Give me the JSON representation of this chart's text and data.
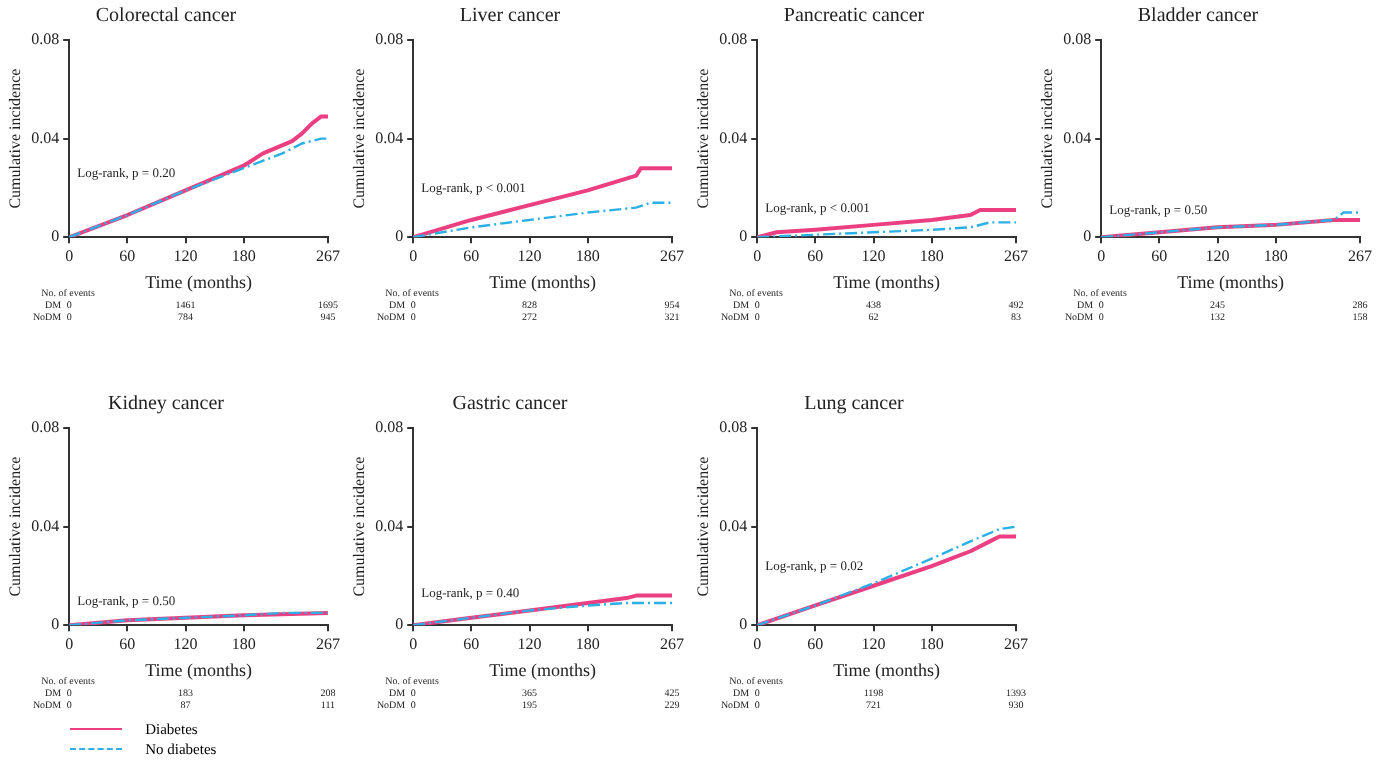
{
  "chart_data": [
    {
      "type": "line",
      "title": "Colorectal cancer",
      "xlabel": "Time (months)",
      "ylabel": "Cumulative incidence",
      "xlim": [
        0,
        267
      ],
      "xticks": [
        0,
        60,
        120,
        180,
        267
      ],
      "ylim": [
        0,
        0.08
      ],
      "yticks": [
        0,
        0.04,
        0.08
      ],
      "grid": false,
      "legend": false,
      "annotations": [
        "Log-rank, p = 0.20",
        "No. of events",
        "DM",
        "0",
        "1461",
        "1695",
        "NoDM",
        "0",
        "784",
        "945"
      ],
      "series": [
        {
          "color": "#ec3f82",
          "line_style": "solid",
          "x": [
            0,
            60,
            120,
            180,
            200,
            230,
            240,
            250,
            260,
            267
          ],
          "values": [
            0,
            0.009,
            0.019,
            0.029,
            0.034,
            0.039,
            0.042,
            0.046,
            0.049,
            0.049
          ]
        },
        {
          "color": "#2bb0e6",
          "line_style": "dashed",
          "x": [
            0,
            60,
            120,
            180,
            220,
            240,
            260,
            267
          ],
          "values": [
            0,
            0.009,
            0.019,
            0.028,
            0.034,
            0.038,
            0.04,
            0.04
          ]
        }
      ]
    },
    {
      "type": "line",
      "title": "Liver cancer",
      "xlabel": "Time (months)",
      "ylabel": "Cumulative incidence",
      "xlim": [
        0,
        267
      ],
      "xticks": [
        0,
        60,
        120,
        180,
        267
      ],
      "ylim": [
        0,
        0.08
      ],
      "yticks": [
        0,
        0.04,
        0.08
      ],
      "grid": false,
      "legend": false,
      "annotations": [
        "Log-rank, p < 0.001",
        "No. of events",
        "DM",
        "0",
        "828",
        "954",
        "NoDM",
        "0",
        "272",
        "321"
      ],
      "series": [
        {
          "color": "#ec3f82",
          "line_style": "solid",
          "x": [
            0,
            60,
            120,
            180,
            230,
            235,
            267
          ],
          "values": [
            0,
            0.007,
            0.013,
            0.019,
            0.025,
            0.028,
            0.028
          ]
        },
        {
          "color": "#2bb0e6",
          "line_style": "dashed",
          "x": [
            0,
            60,
            120,
            180,
            230,
            245,
            267
          ],
          "values": [
            0,
            0.004,
            0.007,
            0.01,
            0.012,
            0.014,
            0.014
          ]
        }
      ]
    },
    {
      "type": "line",
      "title": "Pancreatic cancer",
      "xlabel": "Time (months)",
      "ylabel": "Cumulative incidence",
      "xlim": [
        0,
        267
      ],
      "xticks": [
        0,
        60,
        120,
        180,
        267
      ],
      "ylim": [
        0,
        0.08
      ],
      "yticks": [
        0,
        0.04,
        0.08
      ],
      "grid": false,
      "legend": false,
      "annotations": [
        "Log-rank, p < 0.001",
        "No. of events",
        "DM",
        "0",
        "438",
        "492",
        "NoDM",
        "0",
        "62",
        "83"
      ],
      "series": [
        {
          "color": "#ec3f82",
          "line_style": "solid",
          "x": [
            0,
            20,
            60,
            120,
            180,
            220,
            230,
            267
          ],
          "values": [
            0,
            0.002,
            0.003,
            0.005,
            0.007,
            0.009,
            0.011,
            0.011
          ]
        },
        {
          "color": "#2bb0e6",
          "line_style": "dashed",
          "x": [
            0,
            60,
            120,
            180,
            220,
            240,
            267
          ],
          "values": [
            0,
            0.001,
            0.002,
            0.003,
            0.004,
            0.006,
            0.006
          ]
        }
      ]
    },
    {
      "type": "line",
      "title": "Bladder cancer",
      "xlabel": "Time (months)",
      "ylabel": "Cumulative incidence",
      "xlim": [
        0,
        267
      ],
      "xticks": [
        0,
        60,
        120,
        180,
        267
      ],
      "ylim": [
        0,
        0.08
      ],
      "yticks": [
        0,
        0.04,
        0.08
      ],
      "grid": false,
      "legend": false,
      "annotations": [
        "Log-rank, p = 0.50",
        "No. of events",
        "DM",
        "0",
        "245",
        "286",
        "NoDM",
        "0",
        "132",
        "158"
      ],
      "series": [
        {
          "color": "#ec3f82",
          "line_style": "solid",
          "x": [
            0,
            60,
            120,
            180,
            240,
            267
          ],
          "values": [
            0,
            0.002,
            0.004,
            0.005,
            0.007,
            0.007
          ]
        },
        {
          "color": "#2bb0e6",
          "line_style": "dashed",
          "x": [
            0,
            60,
            120,
            180,
            240,
            250,
            267
          ],
          "values": [
            0,
            0.002,
            0.004,
            0.005,
            0.007,
            0.01,
            0.01
          ]
        }
      ]
    },
    {
      "type": "line",
      "title": "Kidney cancer",
      "xlabel": "Time (months)",
      "ylabel": "Cumulative incidence",
      "xlim": [
        0,
        267
      ],
      "xticks": [
        0,
        60,
        120,
        180,
        267
      ],
      "ylim": [
        0,
        0.08
      ],
      "yticks": [
        0,
        0.04,
        0.08
      ],
      "grid": false,
      "legend": "bottom",
      "annotations": [
        "Log-rank, p = 0.50",
        "No. of events",
        "DM",
        "0",
        "183",
        "208",
        "NoDM",
        "0",
        "87",
        "111"
      ],
      "series": [
        {
          "name": "Diabetes",
          "color": "#ec3f82",
          "line_style": "solid",
          "x": [
            0,
            60,
            120,
            180,
            267
          ],
          "values": [
            0,
            0.002,
            0.003,
            0.004,
            0.005
          ]
        },
        {
          "name": "No diabetes",
          "color": "#2bb0e6",
          "line_style": "dashed",
          "x": [
            0,
            60,
            120,
            180,
            220,
            267
          ],
          "values": [
            0,
            0.002,
            0.003,
            0.004,
            0.005,
            0.005
          ]
        }
      ]
    },
    {
      "type": "line",
      "title": "Gastric cancer",
      "xlabel": "Time (months)",
      "ylabel": "Cumulative incidence",
      "xlim": [
        0,
        267
      ],
      "xticks": [
        0,
        60,
        120,
        180,
        267
      ],
      "ylim": [
        0,
        0.08
      ],
      "yticks": [
        0,
        0.04,
        0.08
      ],
      "grid": false,
      "legend": false,
      "annotations": [
        "Log-rank, p = 0.40",
        "No. of events",
        "DM",
        "0",
        "365",
        "425",
        "NoDM",
        "0",
        "195",
        "229"
      ],
      "series": [
        {
          "color": "#ec3f82",
          "line_style": "solid",
          "x": [
            0,
            60,
            120,
            180,
            220,
            230,
            267
          ],
          "values": [
            0,
            0.003,
            0.006,
            0.009,
            0.011,
            0.012,
            0.012
          ]
        },
        {
          "color": "#2bb0e6",
          "line_style": "dashed",
          "x": [
            0,
            60,
            120,
            180,
            220,
            267
          ],
          "values": [
            0,
            0.003,
            0.006,
            0.008,
            0.009,
            0.009
          ]
        }
      ]
    },
    {
      "type": "line",
      "title": "Lung cancer",
      "xlabel": "Time (months)",
      "ylabel": "Cumulative incidence",
      "xlim": [
        0,
        267
      ],
      "xticks": [
        0,
        60,
        120,
        180,
        267
      ],
      "ylim": [
        0,
        0.08
      ],
      "yticks": [
        0,
        0.04,
        0.08
      ],
      "grid": false,
      "legend": false,
      "annotations": [
        "Log-rank, p = 0.02",
        "No. of events",
        "DM",
        "0",
        "1198",
        "1393",
        "NoDM",
        "0",
        "721",
        "930"
      ],
      "series": [
        {
          "color": "#ec3f82",
          "line_style": "solid",
          "x": [
            0,
            60,
            120,
            180,
            200,
            220,
            240,
            250,
            267
          ],
          "values": [
            0,
            0.008,
            0.016,
            0.024,
            0.027,
            0.03,
            0.034,
            0.036,
            0.036
          ]
        },
        {
          "color": "#2bb0e6",
          "line_style": "dashed",
          "x": [
            0,
            60,
            120,
            180,
            220,
            250,
            267
          ],
          "values": [
            0,
            0.008,
            0.017,
            0.027,
            0.034,
            0.039,
            0.04
          ]
        }
      ]
    }
  ]
}
